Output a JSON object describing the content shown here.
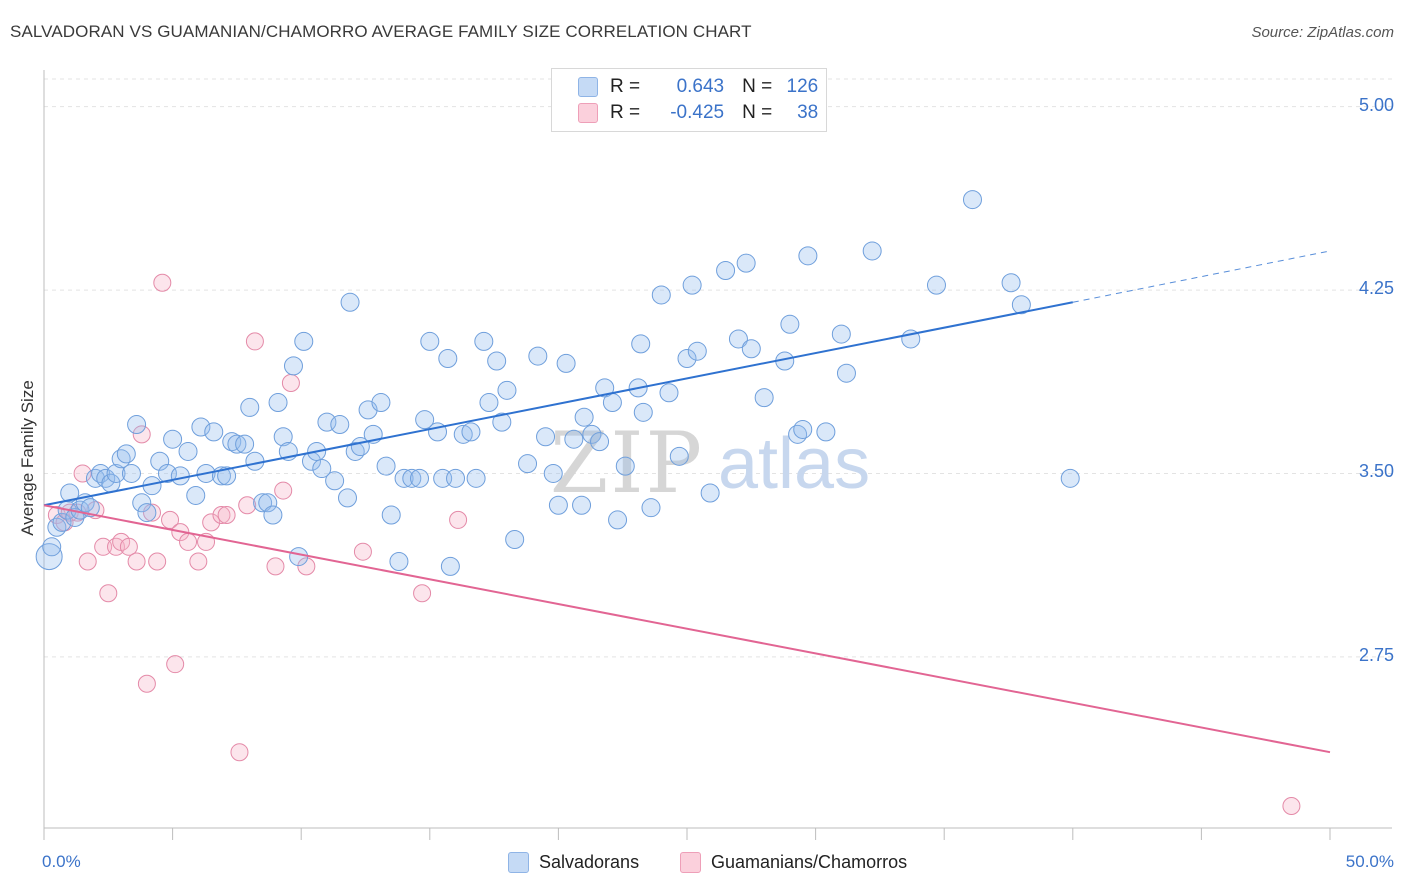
{
  "header": {
    "title": "SALVADORAN VS GUAMANIAN/CHAMORRO AVERAGE FAMILY SIZE CORRELATION CHART",
    "source": "Source: ZipAtlas.com"
  },
  "watermark": {
    "part1": "ZIP",
    "part2": "atlas"
  },
  "legend": {
    "rows": [
      {
        "r_label": "R =",
        "r_value": "0.643",
        "n_label": "N =",
        "n_value": "126",
        "color": "#a9c8f0"
      },
      {
        "r_label": "R =",
        "r_value": "-0.425",
        "n_label": "N =",
        "n_value": "38",
        "color": "#f6b8cb"
      }
    ]
  },
  "bottom_legend": {
    "salvadorans": "Salvadorans",
    "guamanians": "Guamanians/Chamorros"
  },
  "colors": {
    "blue_point_fill": "rgba(150,190,238,0.35)",
    "blue_point_stroke": "#6f9fdc",
    "blue_line": "#2f72d0",
    "pink_point_fill": "rgba(246,180,200,0.35)",
    "pink_point_stroke": "#e48aa8",
    "pink_line": "#e26593",
    "axis_label": "#3b73c9",
    "grid": "#e3e3e3"
  },
  "chart_data": {
    "type": "scatter",
    "title": "SALVADORAN VS GUAMANIAN/CHAMORRO AVERAGE FAMILY SIZE CORRELATION CHART",
    "xlabel": "",
    "ylabel": "Average Family Size",
    "xlim": [
      0,
      50
    ],
    "ylim": [
      2.05,
      5.15
    ],
    "x_tick_labels": [
      "0.0%",
      "50.0%"
    ],
    "y_ticks": [
      5.0,
      4.25,
      3.5,
      2.75
    ],
    "y_tick_labels": [
      "5.00",
      "4.25",
      "3.50",
      "2.75"
    ],
    "grid": true,
    "legend_position": "top-center",
    "series": [
      {
        "name": "Salvadorans",
        "r": 0.643,
        "n": 126,
        "trend": {
          "x0": 0,
          "y0": 3.37,
          "x1": 40,
          "y1": 4.2,
          "dashed_to_x": 50,
          "dashed_y1": 4.41
        },
        "points": [
          [
            0.2,
            3.16
          ],
          [
            0.3,
            3.2
          ],
          [
            0.5,
            3.28
          ],
          [
            0.7,
            3.3
          ],
          [
            0.9,
            3.35
          ],
          [
            1.0,
            3.42
          ],
          [
            1.2,
            3.32
          ],
          [
            1.4,
            3.35
          ],
          [
            1.6,
            3.38
          ],
          [
            1.8,
            3.36
          ],
          [
            2.0,
            3.48
          ],
          [
            2.2,
            3.5
          ],
          [
            2.4,
            3.48
          ],
          [
            2.6,
            3.46
          ],
          [
            2.8,
            3.5
          ],
          [
            3.0,
            3.56
          ],
          [
            3.2,
            3.58
          ],
          [
            3.4,
            3.5
          ],
          [
            3.6,
            3.7
          ],
          [
            3.8,
            3.38
          ],
          [
            4.0,
            3.34
          ],
          [
            4.2,
            3.45
          ],
          [
            4.5,
            3.55
          ],
          [
            4.8,
            3.5
          ],
          [
            5.0,
            3.64
          ],
          [
            5.3,
            3.49
          ],
          [
            5.6,
            3.59
          ],
          [
            5.9,
            3.41
          ],
          [
            6.1,
            3.69
          ],
          [
            6.3,
            3.5
          ],
          [
            6.6,
            3.67
          ],
          [
            6.9,
            3.49
          ],
          [
            7.1,
            3.49
          ],
          [
            7.3,
            3.63
          ],
          [
            7.5,
            3.62
          ],
          [
            7.8,
            3.62
          ],
          [
            8.0,
            3.77
          ],
          [
            8.2,
            3.55
          ],
          [
            8.5,
            3.38
          ],
          [
            8.7,
            3.38
          ],
          [
            8.9,
            3.33
          ],
          [
            9.1,
            3.79
          ],
          [
            9.3,
            3.65
          ],
          [
            9.5,
            3.59
          ],
          [
            9.7,
            3.94
          ],
          [
            9.9,
            3.16
          ],
          [
            10.1,
            4.04
          ],
          [
            10.4,
            3.55
          ],
          [
            10.6,
            3.59
          ],
          [
            10.8,
            3.52
          ],
          [
            11.0,
            3.71
          ],
          [
            11.3,
            3.47
          ],
          [
            11.5,
            3.7
          ],
          [
            11.8,
            3.4
          ],
          [
            11.9,
            4.2
          ],
          [
            12.1,
            3.59
          ],
          [
            12.3,
            3.61
          ],
          [
            12.6,
            3.76
          ],
          [
            12.8,
            3.66
          ],
          [
            13.1,
            3.79
          ],
          [
            13.3,
            3.53
          ],
          [
            13.5,
            3.33
          ],
          [
            13.8,
            3.14
          ],
          [
            14.0,
            3.48
          ],
          [
            14.3,
            3.48
          ],
          [
            14.6,
            3.48
          ],
          [
            14.8,
            3.72
          ],
          [
            15.0,
            4.04
          ],
          [
            15.3,
            3.67
          ],
          [
            15.5,
            3.48
          ],
          [
            15.7,
            3.97
          ],
          [
            15.8,
            3.12
          ],
          [
            16.0,
            3.48
          ],
          [
            16.3,
            3.66
          ],
          [
            16.6,
            3.67
          ],
          [
            16.8,
            3.48
          ],
          [
            17.1,
            4.04
          ],
          [
            17.3,
            3.79
          ],
          [
            17.6,
            3.96
          ],
          [
            17.8,
            3.71
          ],
          [
            18.0,
            3.84
          ],
          [
            18.3,
            3.23
          ],
          [
            18.8,
            3.54
          ],
          [
            19.2,
            3.98
          ],
          [
            19.5,
            3.65
          ],
          [
            19.8,
            3.5
          ],
          [
            20.0,
            3.37
          ],
          [
            20.3,
            3.95
          ],
          [
            20.6,
            3.64
          ],
          [
            20.9,
            3.37
          ],
          [
            21.0,
            3.73
          ],
          [
            21.3,
            3.66
          ],
          [
            21.6,
            3.63
          ],
          [
            21.8,
            3.85
          ],
          [
            22.1,
            3.79
          ],
          [
            22.3,
            3.31
          ],
          [
            22.6,
            3.53
          ],
          [
            23.1,
            3.85
          ],
          [
            23.2,
            4.03
          ],
          [
            23.3,
            3.75
          ],
          [
            23.6,
            3.36
          ],
          [
            24.0,
            4.23
          ],
          [
            24.3,
            3.83
          ],
          [
            24.7,
            3.57
          ],
          [
            25.0,
            3.97
          ],
          [
            25.2,
            4.27
          ],
          [
            25.4,
            4.0
          ],
          [
            25.9,
            3.42
          ],
          [
            26.5,
            4.33
          ],
          [
            27.0,
            4.05
          ],
          [
            27.3,
            4.36
          ],
          [
            27.5,
            4.01
          ],
          [
            28.0,
            3.81
          ],
          [
            28.8,
            3.96
          ],
          [
            29.0,
            4.11
          ],
          [
            29.3,
            3.66
          ],
          [
            29.5,
            3.68
          ],
          [
            29.7,
            4.39
          ],
          [
            30.4,
            3.67
          ],
          [
            31.0,
            4.07
          ],
          [
            31.2,
            3.91
          ],
          [
            32.2,
            4.41
          ],
          [
            33.7,
            4.05
          ],
          [
            34.7,
            4.27
          ],
          [
            36.1,
            4.62
          ],
          [
            37.6,
            4.28
          ],
          [
            38.0,
            4.19
          ],
          [
            39.9,
            3.48
          ]
        ],
        "point_sizes_hint": "one large point near x=0.2"
      },
      {
        "name": "Guamanians/Chamorros",
        "r": -0.425,
        "n": 38,
        "trend": {
          "x0": 0,
          "y0": 3.37,
          "x1": 50,
          "y1": 2.36
        },
        "points": [
          [
            0.5,
            3.33
          ],
          [
            0.8,
            3.3
          ],
          [
            1.0,
            3.34
          ],
          [
            1.3,
            3.34
          ],
          [
            1.5,
            3.5
          ],
          [
            1.7,
            3.14
          ],
          [
            2.0,
            3.35
          ],
          [
            2.3,
            3.2
          ],
          [
            2.5,
            3.01
          ],
          [
            2.8,
            3.2
          ],
          [
            3.0,
            3.22
          ],
          [
            3.3,
            3.2
          ],
          [
            3.6,
            3.14
          ],
          [
            3.8,
            3.66
          ],
          [
            4.0,
            2.64
          ],
          [
            4.2,
            3.34
          ],
          [
            4.4,
            3.14
          ],
          [
            4.6,
            4.28
          ],
          [
            4.9,
            3.31
          ],
          [
            5.1,
            2.72
          ],
          [
            5.3,
            3.26
          ],
          [
            5.6,
            3.22
          ],
          [
            6.0,
            3.14
          ],
          [
            6.3,
            3.22
          ],
          [
            6.5,
            3.3
          ],
          [
            6.9,
            3.33
          ],
          [
            7.1,
            3.33
          ],
          [
            7.6,
            2.36
          ],
          [
            7.9,
            3.37
          ],
          [
            8.2,
            4.04
          ],
          [
            9.0,
            3.12
          ],
          [
            9.3,
            3.43
          ],
          [
            9.6,
            3.87
          ],
          [
            10.2,
            3.12
          ],
          [
            12.4,
            3.18
          ],
          [
            14.7,
            3.01
          ],
          [
            16.1,
            3.31
          ],
          [
            48.5,
            2.14
          ]
        ]
      }
    ]
  }
}
